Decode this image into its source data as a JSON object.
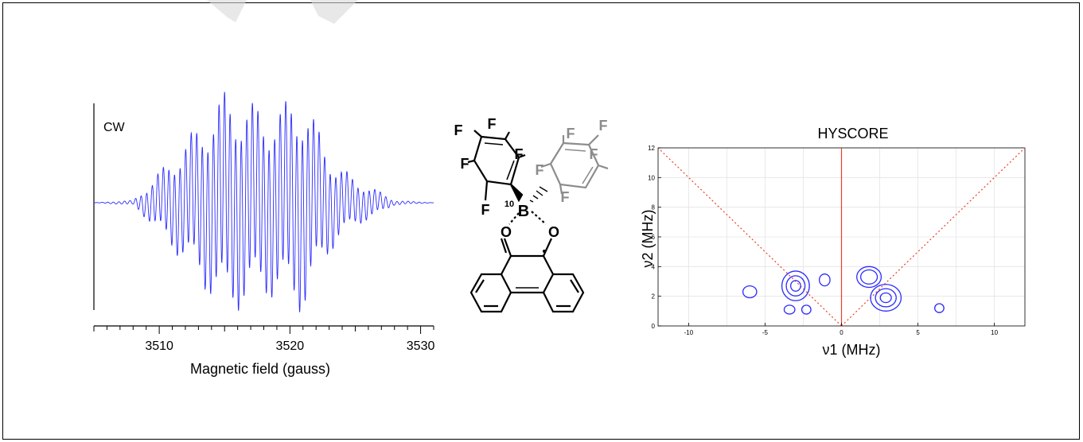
{
  "chart_data": [
    {
      "type": "line",
      "panel": "cw-epr",
      "title": "",
      "annotation": "CW",
      "xlabel": "Magnetic field (gauss)",
      "ylabel": "",
      "xlim": [
        3505,
        3531
      ],
      "xticks": [
        3510,
        3520,
        3530
      ],
      "xtick_labels": [
        "3510",
        "3520",
        "3530"
      ],
      "line_color": "#2b2bff",
      "series": [
        {
          "envelope_knots_gauss": [
            3505,
            3508,
            3509.5,
            3511,
            3512.5,
            3513.5,
            3515,
            3516.5,
            3518,
            3519.5,
            3521,
            3522.5,
            3523.5,
            3525,
            3526.5,
            3528,
            3531
          ],
          "envelope_amplitude": [
            0,
            0.02,
            0.2,
            0.4,
            0.6,
            0.75,
            0.95,
            0.9,
            0.8,
            0.85,
            0.95,
            0.55,
            0.35,
            0.2,
            0.12,
            0.02,
            0
          ]
        }
      ]
    },
    {
      "type": "contour",
      "panel": "hyscore",
      "title": "HYSCORE",
      "xlabel": "ν1 (MHz)",
      "ylabel": "ν2 (MHz)",
      "xlim": [
        -12,
        12
      ],
      "ylim": [
        0,
        12
      ],
      "xticks": [
        -10,
        -5,
        0,
        5,
        10
      ],
      "xtick_labels": [
        "-10",
        "-5",
        "0",
        "5",
        "10"
      ],
      "yticks": [
        0,
        2,
        4,
        6,
        8,
        10,
        12
      ],
      "ytick_labels": [
        "0",
        "2",
        "4",
        "6",
        "8",
        "10",
        "12"
      ],
      "grid": true,
      "contour_color": "#2b2bff",
      "reference_color": "#e8402a",
      "reference_lines": [
        {
          "style": "solid",
          "x": 0
        },
        {
          "style": "dotted",
          "slope": 1
        },
        {
          "style": "dotted",
          "slope": -1
        }
      ],
      "peaks": [
        {
          "x": -6.0,
          "y": 2.3,
          "rx": 0.45,
          "ry": 0.4,
          "levels": 1
        },
        {
          "x": -3.0,
          "y": 2.7,
          "rx": 0.9,
          "ry": 1.0,
          "levels": 3
        },
        {
          "x": -1.1,
          "y": 3.1,
          "rx": 0.35,
          "ry": 0.4,
          "levels": 1
        },
        {
          "x": -3.4,
          "y": 1.1,
          "rx": 0.35,
          "ry": 0.3,
          "levels": 1
        },
        {
          "x": -2.3,
          "y": 1.1,
          "rx": 0.3,
          "ry": 0.3,
          "levels": 1
        },
        {
          "x": 1.8,
          "y": 3.3,
          "rx": 0.8,
          "ry": 0.7,
          "levels": 2
        },
        {
          "x": 2.9,
          "y": 1.9,
          "rx": 1.0,
          "ry": 0.9,
          "levels": 3
        },
        {
          "x": 6.4,
          "y": 1.2,
          "rx": 0.3,
          "ry": 0.3,
          "levels": 1
        }
      ]
    }
  ],
  "molecule": {
    "atoms": [
      "F",
      "F",
      "F",
      "F",
      "F",
      "F",
      "F",
      "F",
      "F",
      "F",
      "10",
      "B",
      "O",
      "O"
    ],
    "colors": {
      "dark": "#000000",
      "light": "#8c8c8c"
    }
  }
}
